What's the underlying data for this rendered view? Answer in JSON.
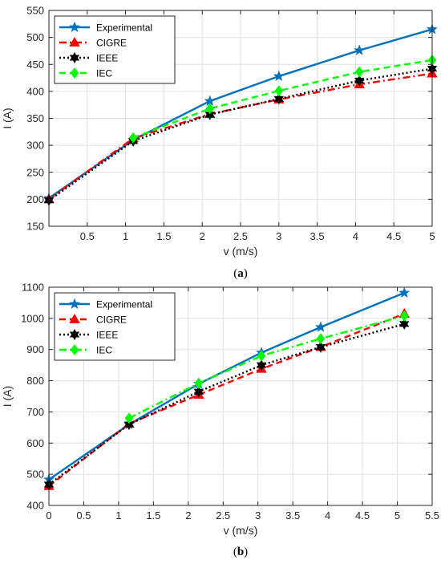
{
  "chart_data": [
    {
      "type": "line",
      "panel_label": "a",
      "xlabel": "v (m/s)",
      "ylabel": "I (A)",
      "xlim": [
        0,
        5
      ],
      "ylim": [
        150,
        550
      ],
      "xticks": [
        0.5,
        1,
        1.5,
        2,
        2.5,
        3,
        3.5,
        4,
        4.5,
        5
      ],
      "yticks": [
        150,
        200,
        250,
        300,
        350,
        400,
        450,
        500,
        550
      ],
      "grid": true,
      "legend_position": "top-left",
      "series": [
        {
          "name": "Experimental",
          "color": "#0072BD",
          "line": "solid",
          "marker": "star",
          "x": [
            0,
            1.1,
            2.1,
            3.0,
            4.05,
            5.0
          ],
          "y": [
            202,
            310,
            382,
            428,
            476,
            515
          ]
        },
        {
          "name": "CIGRE",
          "color": "#FF0000",
          "line": "dashdot",
          "marker": "triangle",
          "x": [
            0,
            1.1,
            2.1,
            3.0,
            4.05,
            5.0
          ],
          "y": [
            200,
            313,
            358,
            385,
            413,
            433
          ]
        },
        {
          "name": "IEEE",
          "color": "#000000",
          "line": "dotted",
          "marker": "hexagram",
          "x": [
            0,
            1.1,
            2.1,
            3.0,
            4.05,
            5.0
          ],
          "y": [
            198,
            308,
            357,
            386,
            420,
            442
          ]
        },
        {
          "name": "IEC",
          "color": "#00FF00",
          "line": "dashed",
          "marker": "diamond",
          "x": [
            1.1,
            2.1,
            3.0,
            4.05,
            5.0
          ],
          "y": [
            314,
            368,
            401,
            436,
            458
          ]
        }
      ]
    },
    {
      "type": "line",
      "panel_label": "b",
      "xlabel": "v (m/s)",
      "ylabel": "I (A)",
      "xlim": [
        0,
        5.5
      ],
      "ylim": [
        400,
        1100
      ],
      "xticks": [
        0,
        0.5,
        1,
        1.5,
        2,
        2.5,
        3,
        3.5,
        4,
        4.5,
        5,
        5.5
      ],
      "yticks": [
        400,
        500,
        600,
        700,
        800,
        900,
        1000,
        1100
      ],
      "grid": true,
      "legend_position": "top-left",
      "series": [
        {
          "name": "Experimental",
          "color": "#0072BD",
          "line": "solid",
          "marker": "star",
          "x": [
            0,
            1.15,
            2.15,
            3.05,
            3.9,
            5.1
          ],
          "y": [
            483,
            660,
            790,
            890,
            972,
            1082
          ]
        },
        {
          "name": "CIGRE",
          "color": "#FF0000",
          "line": "dashed",
          "marker": "triangle",
          "x": [
            0,
            1.15,
            2.15,
            3.05,
            3.9,
            5.1
          ],
          "y": [
            462,
            662,
            755,
            838,
            908,
            1015
          ]
        },
        {
          "name": "IEEE",
          "color": "#000000",
          "line": "dotted",
          "marker": "hexagram",
          "x": [
            0,
            1.15,
            2.15,
            3.05,
            3.9,
            5.1
          ],
          "y": [
            467,
            660,
            765,
            850,
            908,
            982
          ]
        },
        {
          "name": "IEC",
          "color": "#00FF00",
          "line": "dashdot",
          "marker": "diamond",
          "x": [
            1.15,
            2.15,
            3.05,
            3.9,
            5.1
          ],
          "y": [
            680,
            792,
            880,
            935,
            1008
          ]
        }
      ]
    }
  ]
}
